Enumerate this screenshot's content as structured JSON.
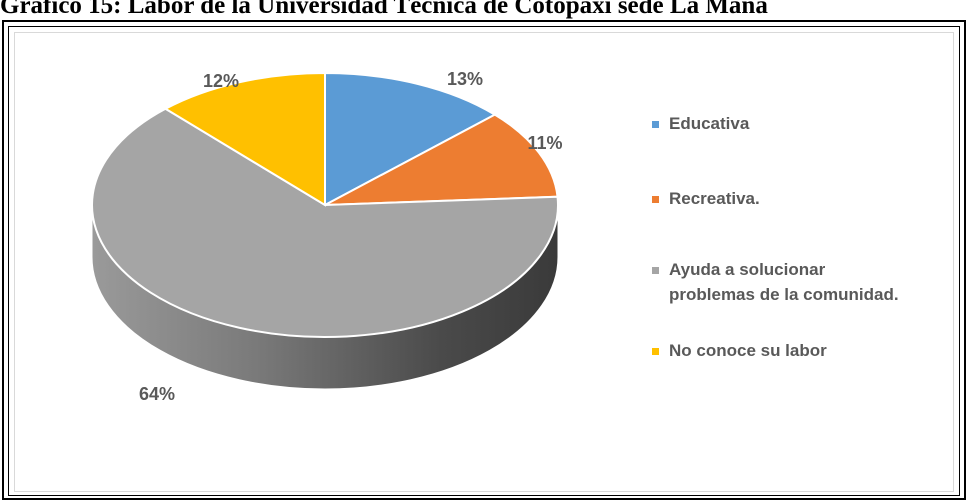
{
  "caption": "Gráfico 15: Labor de la Universidad Técnica de Cotopaxi sede La Maná",
  "chart_data": {
    "type": "pie",
    "variant": "3d",
    "slices": [
      {
        "label": "Educativa",
        "value": 13,
        "display": "13%",
        "color": "#5b9bd5"
      },
      {
        "label": "Recreativa.",
        "value": 11,
        "display": "11%",
        "color": "#ed7d31"
      },
      {
        "label": "Ayuda a solucionar problemas de la comunidad.",
        "label_lines": [
          "Ayuda a solucionar",
          "problemas de la comunidad."
        ],
        "value": 64,
        "display": "64%",
        "color": "#a5a5a5"
      },
      {
        "label": "No conoce su labor",
        "value": 12,
        "display": "12%",
        "color": "#ffc000"
      }
    ],
    "legend_position": "right"
  }
}
